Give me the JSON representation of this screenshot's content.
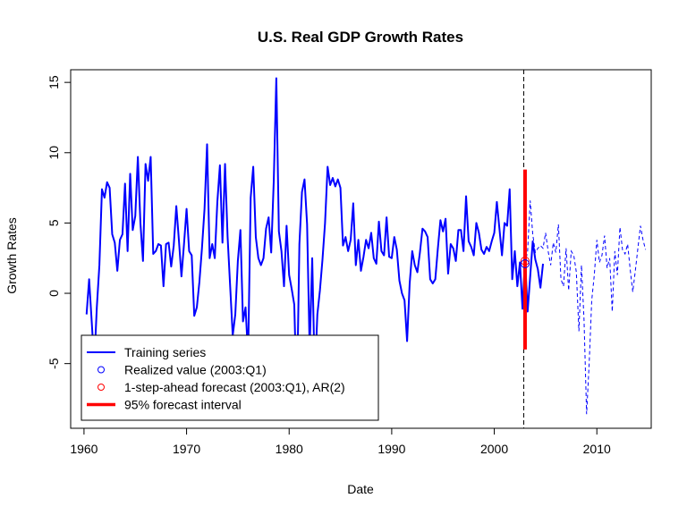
{
  "chart_data": {
    "type": "line",
    "title": "U.S. Real GDP Growth Rates",
    "xlabel": "Date",
    "ylabel": "Growth Rates",
    "xlim": [
      1958.7,
      2015.3
    ],
    "ylim": [
      -9.6,
      15.9
    ],
    "x_ticks": [
      1960,
      1970,
      1980,
      1990,
      2000,
      2010
    ],
    "y_ticks": [
      -5,
      0,
      5,
      10,
      15
    ],
    "colors": {
      "training": "#0000ff",
      "post_sample": "#0000ff",
      "realized": "#0000ff",
      "forecast": "#ff0000",
      "interval": "#ff0000",
      "vline": "#000000"
    },
    "legend": {
      "position": "bottom-left",
      "entries": [
        {
          "label": "Training series",
          "kind": "line",
          "color": "#0000ff"
        },
        {
          "label": "Realized value (2003:Q1)",
          "kind": "circle",
          "color": "#0000ff"
        },
        {
          "label": "1-step-ahead forecast (2003:Q1), AR(2)",
          "kind": "circle",
          "color": "#ff0000"
        },
        {
          "label": "95% forecast interval",
          "kind": "thick-line",
          "color": "#ff0000"
        }
      ]
    },
    "cutoff_date": 2002.875,
    "series": [
      {
        "name": "Training series",
        "style": "solid",
        "start": 1960.25,
        "step": 0.25,
        "values": [
          -1.5,
          1.0,
          -2.0,
          -5.0,
          -1.0,
          2.0,
          7.4,
          6.8,
          7.9,
          7.5,
          4.2,
          3.6,
          1.6,
          3.8,
          4.2,
          7.8,
          3.0,
          8.5,
          4.5,
          5.5,
          9.7,
          5.0,
          2.3,
          9.2,
          8.0,
          9.7,
          2.8,
          3.0,
          3.5,
          3.4,
          0.5,
          3.5,
          3.6,
          1.9,
          3.4,
          6.2,
          3.8,
          1.2,
          3.5,
          6.0,
          3.0,
          2.7,
          -1.6,
          -1.0,
          0.8,
          3.2,
          6.0,
          10.6,
          2.5,
          3.5,
          2.5,
          6.5,
          9.1,
          3.6,
          9.2,
          4.0,
          0.5,
          -3.0,
          -1.5,
          2.3,
          4.5,
          -2.0,
          -1.0,
          -4.5,
          6.8,
          9.0,
          4.0,
          2.5,
          2.0,
          2.5,
          4.6,
          5.4,
          2.9,
          8.0,
          15.3,
          4.4,
          3.0,
          0.5,
          4.8,
          1.3,
          0.3,
          -0.8,
          -7.8,
          3.5,
          7.2,
          8.1,
          4.9,
          -4.0,
          2.5,
          -6.1,
          -1.5,
          0.2,
          2.4,
          5.0,
          9.0,
          7.7,
          8.2,
          7.6,
          8.1,
          7.5,
          3.4,
          4.0,
          3.0,
          3.8,
          6.4,
          2.0,
          3.8,
          1.6,
          2.6,
          3.8,
          3.2,
          4.3,
          2.5,
          2.1,
          5.1,
          3.0,
          2.7,
          5.4,
          2.6,
          2.5,
          4.0,
          3.1,
          0.9,
          0.0,
          -0.5,
          -3.4,
          0.7,
          3.0,
          2.0,
          1.5,
          2.9,
          4.6,
          4.4,
          4.0,
          1.0,
          0.7,
          1.0,
          3.2,
          5.2,
          4.4,
          5.3,
          1.4,
          3.5,
          3.2,
          2.3,
          4.5,
          4.5,
          3.0,
          6.9,
          3.7,
          3.3,
          2.7,
          5.0,
          4.3,
          3.1,
          2.8,
          3.3,
          3.0,
          3.7,
          4.3,
          6.5,
          4.6,
          2.7,
          5.0,
          4.8,
          7.4,
          1.0,
          3.0,
          0.5,
          2.2,
          -1.1,
          2.5,
          -1.3,
          1.2,
          3.7,
          2.4,
          1.7,
          0.4,
          2.1
        ]
      },
      {
        "name": "Post-sample series",
        "style": "dashed",
        "start": 2003.0,
        "step": 0.25,
        "values": [
          2.1,
          3.0,
          6.6,
          4.2,
          2.9,
          3.2,
          3.4,
          3.2,
          4.3,
          3.0,
          2.0,
          3.6,
          2.9,
          4.9,
          1.0,
          0.5,
          3.2,
          0.2,
          3.0,
          2.7,
          1.5,
          -2.7,
          2.0,
          -1.9,
          -8.6,
          -5.0,
          -0.5,
          1.3,
          3.8,
          2.2,
          2.7,
          4.1,
          1.8,
          2.5,
          -1.3,
          3.0,
          1.3,
          4.7,
          3.1,
          2.8,
          3.5,
          1.7,
          0.1,
          1.6,
          3.2,
          4.8,
          3.8,
          3.1
        ]
      }
    ],
    "realized_point": {
      "x": 2003.0,
      "y": 2.1
    },
    "forecast_point": {
      "x": 2003.0,
      "y": 2.3
    },
    "interval": {
      "x": 2003.0,
      "low": -4.0,
      "high": 8.8
    }
  }
}
